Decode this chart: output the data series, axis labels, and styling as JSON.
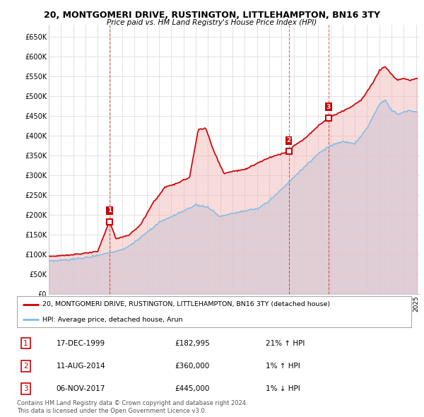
{
  "title": "20, MONTGOMERI DRIVE, RUSTINGTON, LITTLEHAMPTON, BN16 3TY",
  "subtitle": "Price paid vs. HM Land Registry's House Price Index (HPI)",
  "ylim": [
    0,
    680000
  ],
  "yticks": [
    0,
    50000,
    100000,
    150000,
    200000,
    250000,
    300000,
    350000,
    400000,
    450000,
    500000,
    550000,
    600000,
    650000
  ],
  "ytick_labels": [
    "£0",
    "£50K",
    "£100K",
    "£150K",
    "£200K",
    "£250K",
    "£300K",
    "£350K",
    "£400K",
    "£450K",
    "£500K",
    "£550K",
    "£600K",
    "£650K"
  ],
  "hpi_color": "#7bbde8",
  "hpi_fill_color": "#aed4f0",
  "price_color": "#cc0000",
  "price_fill_color": "#f0b0b0",
  "marker_color": "#cc0000",
  "sales": [
    {
      "date": 1999.96,
      "price": 182995,
      "label": "1"
    },
    {
      "date": 2014.6,
      "price": 360000,
      "label": "2"
    },
    {
      "date": 2017.85,
      "price": 445000,
      "label": "3"
    }
  ],
  "legend_property": "20, MONTGOMERI DRIVE, RUSTINGTON, LITTLEHAMPTON, BN16 3TY (detached house)",
  "legend_hpi": "HPI: Average price, detached house, Arun",
  "table": [
    {
      "num": "1",
      "date": "17-DEC-1999",
      "price": "£182,995",
      "change": "21% ↑ HPI"
    },
    {
      "num": "2",
      "date": "11-AUG-2014",
      "price": "£360,000",
      "change": "1% ↑ HPI"
    },
    {
      "num": "3",
      "date": "06-NOV-2017",
      "price": "£445,000",
      "change": "1% ↓ HPI"
    }
  ],
  "footer": "Contains HM Land Registry data © Crown copyright and database right 2024.\nThis data is licensed under the Open Government Licence v3.0.",
  "bg_color": "#ffffff",
  "grid_color": "#dddddd",
  "hpi_anchors_x": [
    1995.0,
    1996.0,
    1997.0,
    1998.0,
    1999.0,
    2000.0,
    2001.0,
    2002.0,
    2003.0,
    2004.0,
    2005.0,
    2006.0,
    2007.0,
    2008.0,
    2009.0,
    2010.0,
    2011.0,
    2012.0,
    2013.0,
    2014.0,
    2015.0,
    2016.0,
    2017.0,
    2018.0,
    2019.0,
    2020.0,
    2021.0,
    2022.0,
    2022.5,
    2023.0,
    2023.5,
    2024.0,
    2024.5,
    2025.0
  ],
  "hpi_anchors_y": [
    82000,
    85000,
    88000,
    92000,
    98000,
    105000,
    112000,
    130000,
    155000,
    180000,
    195000,
    210000,
    225000,
    220000,
    195000,
    205000,
    210000,
    215000,
    235000,
    265000,
    295000,
    325000,
    355000,
    375000,
    385000,
    380000,
    420000,
    480000,
    490000,
    465000,
    455000,
    460000,
    465000,
    460000
  ],
  "prop_anchors_x": [
    1995.0,
    1996.0,
    1997.0,
    1998.0,
    1999.0,
    1999.96,
    2000.5,
    2001.5,
    2002.5,
    2003.5,
    2004.5,
    2005.5,
    2006.5,
    2007.2,
    2007.8,
    2008.5,
    2009.3,
    2010.0,
    2011.0,
    2012.0,
    2013.0,
    2014.0,
    2014.6,
    2015.0,
    2016.0,
    2017.0,
    2017.85,
    2018.5,
    2019.5,
    2020.5,
    2021.5,
    2022.0,
    2022.5,
    2023.0,
    2023.5,
    2024.0,
    2024.5,
    2025.0
  ],
  "prop_anchors_y": [
    95000,
    97000,
    100000,
    103000,
    108000,
    182995,
    140000,
    148000,
    175000,
    230000,
    270000,
    280000,
    295000,
    415000,
    420000,
    360000,
    305000,
    310000,
    315000,
    330000,
    345000,
    355000,
    360000,
    375000,
    395000,
    425000,
    445000,
    455000,
    470000,
    490000,
    535000,
    565000,
    575000,
    555000,
    540000,
    545000,
    540000,
    545000
  ]
}
